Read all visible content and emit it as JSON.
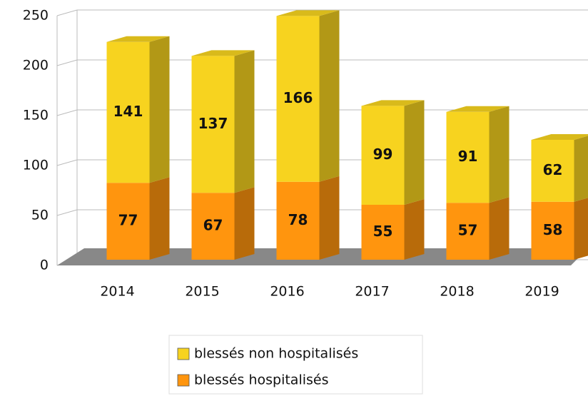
{
  "chart_data": {
    "type": "bar3d-stacked",
    "categories": [
      "2014",
      "2015",
      "2016",
      "2017",
      "2018",
      "2019"
    ],
    "series": [
      {
        "name": "blessés non hospitalisés",
        "color": "#f7d31f",
        "values": [
          141,
          137,
          166,
          99,
          91,
          62
        ]
      },
      {
        "name": "blessés hospitalisés",
        "color": "#ff950e",
        "values": [
          77,
          67,
          78,
          55,
          57,
          58
        ]
      }
    ],
    "ylim": [
      0,
      250
    ],
    "yticks": [
      0,
      50,
      100,
      150,
      200,
      250
    ],
    "grid": true,
    "legend": "bottom"
  }
}
